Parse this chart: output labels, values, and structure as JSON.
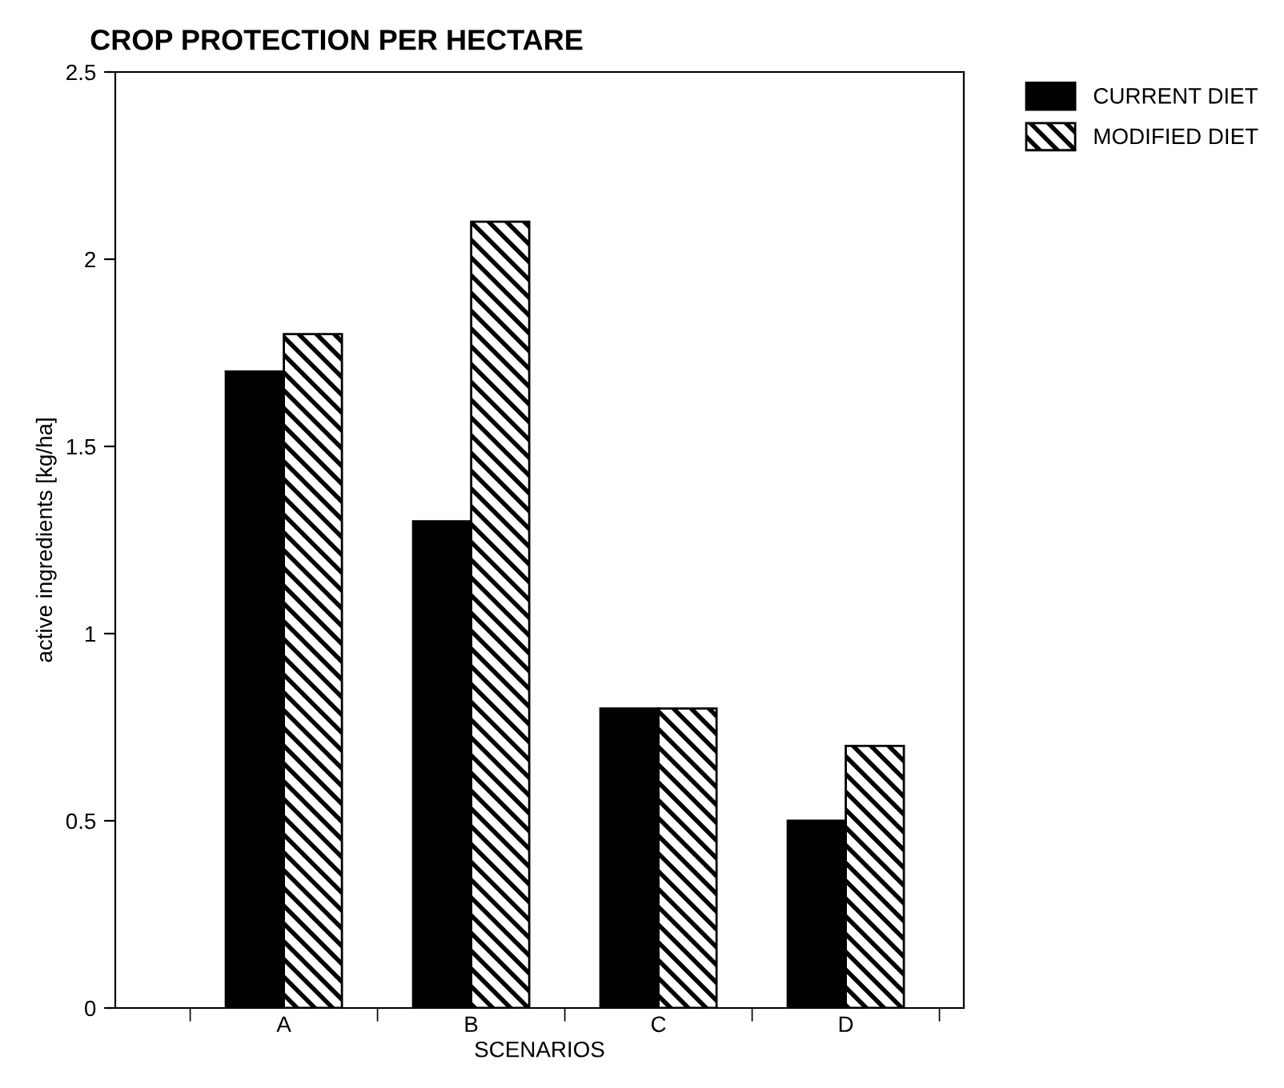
{
  "chart_data": {
    "type": "bar",
    "title": "CROP PROTECTION PER HECTARE",
    "xlabel": "SCENARIOS",
    "ylabel": "active ingredients [kg/ha]",
    "categories": [
      "A",
      "B",
      "C",
      "D"
    ],
    "series": [
      {
        "name": "CURRENT DIET",
        "color": "#000000",
        "values": [
          1.7,
          1.3,
          0.8,
          0.5
        ]
      },
      {
        "name": "MODIFIED DIET",
        "color": "#000000",
        "values": [
          1.8,
          2.1,
          0.8,
          0.7
        ]
      }
    ],
    "ylim": [
      0,
      2.5
    ],
    "yticks": [
      0,
      0.5,
      1,
      1.5,
      2,
      2.5
    ],
    "grid": false,
    "legend": "top right"
  }
}
